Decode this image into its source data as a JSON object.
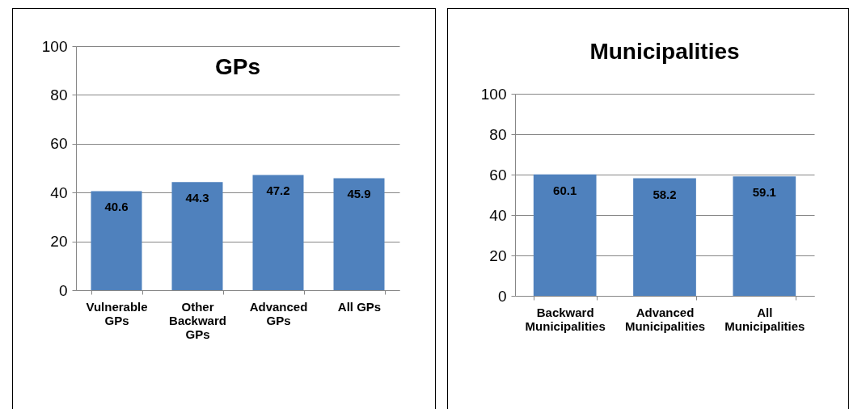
{
  "chart_data": [
    {
      "type": "bar",
      "title": "GPs",
      "categories": [
        "Vulnerable GPs",
        "Other Backward GPs",
        "Advanced GPs",
        "All GPs"
      ],
      "values": [
        40.6,
        44.3,
        47.2,
        45.9
      ],
      "color": "#4f81bd",
      "ylim": [
        0,
        100
      ],
      "yticks": [
        0,
        20,
        40,
        60,
        80,
        100
      ],
      "grid": "y",
      "data_labels": true
    },
    {
      "type": "bar",
      "title": "Municipalities",
      "categories": [
        "Backward Municipalities",
        "Advanced Municipalities",
        "All Municipalities"
      ],
      "values": [
        60.1,
        58.2,
        59.1
      ],
      "color": "#4f81bd",
      "ylim": [
        0,
        100
      ],
      "yticks": [
        0,
        20,
        40,
        60,
        80,
        100
      ],
      "grid": "y",
      "data_labels": true
    }
  ]
}
